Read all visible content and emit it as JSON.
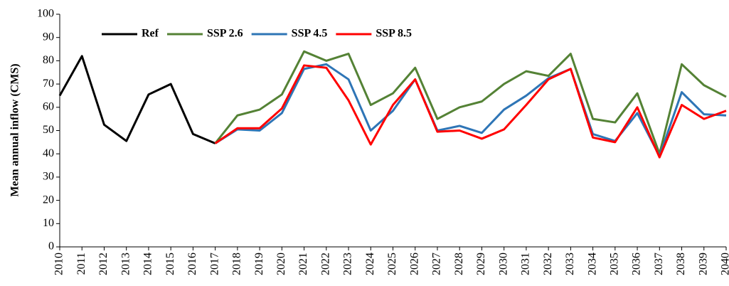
{
  "chart_data": {
    "type": "line",
    "y_label": "Mean annual inflow (CMS)",
    "x": [
      2010,
      2011,
      2012,
      2013,
      2014,
      2015,
      2016,
      2017,
      2018,
      2019,
      2020,
      2021,
      2022,
      2023,
      2024,
      2025,
      2026,
      2027,
      2028,
      2029,
      2030,
      2031,
      2032,
      2033,
      2034,
      2035,
      2036,
      2037,
      2038,
      2039,
      2040
    ],
    "xlim": [
      2010,
      2040
    ],
    "xticks": [
      2010,
      2011,
      2012,
      2013,
      2014,
      2015,
      2016,
      2017,
      2018,
      2019,
      2020,
      2021,
      2022,
      2023,
      2024,
      2025,
      2026,
      2027,
      2028,
      2029,
      2030,
      2031,
      2032,
      2033,
      2034,
      2035,
      2036,
      2037,
      2038,
      2039,
      2040
    ],
    "ylim": [
      0,
      100
    ],
    "yticks": [
      0,
      10,
      20,
      30,
      40,
      50,
      60,
      70,
      80,
      90,
      100
    ],
    "grid": false,
    "legend": "top-left",
    "series": [
      {
        "name": "Ref",
        "color": "#000000",
        "values": [
          65,
          82,
          52.5,
          45.5,
          65.5,
          70,
          48.5,
          44.5,
          null,
          null,
          null,
          null,
          null,
          null,
          null,
          null,
          null,
          null,
          null,
          null,
          null,
          null,
          null,
          null,
          null,
          null,
          null,
          null,
          null,
          null,
          null
        ]
      },
      {
        "name": "SSP 2.6",
        "color": "#548235",
        "values": [
          null,
          null,
          null,
          null,
          null,
          null,
          null,
          44.5,
          56.5,
          59,
          65.5,
          84,
          80,
          83,
          61,
          66,
          77,
          55,
          60,
          62.5,
          70,
          75.5,
          73.5,
          83,
          55,
          53.5,
          66,
          40,
          78.5,
          69.5,
          64.5
        ]
      },
      {
        "name": "SSP 4.5",
        "color": "#2e75b6",
        "values": [
          null,
          null,
          null,
          null,
          null,
          null,
          null,
          44.5,
          50.5,
          50,
          57.5,
          76.5,
          78.5,
          72,
          50,
          58.5,
          72,
          50,
          52,
          49,
          59,
          65,
          72.5,
          76.5,
          48.5,
          45.5,
          57.5,
          39,
          66.5,
          57,
          56.5
        ]
      },
      {
        "name": "SSP 8.5",
        "color": "#ff0000",
        "values": [
          null,
          null,
          null,
          null,
          null,
          null,
          null,
          44.5,
          51,
          51,
          59.5,
          78,
          77,
          63,
          44,
          61,
          72,
          49.5,
          50,
          46.5,
          50.5,
          61,
          72,
          76.5,
          47,
          45,
          60,
          38.5,
          61,
          55,
          58.5
        ]
      }
    ]
  }
}
